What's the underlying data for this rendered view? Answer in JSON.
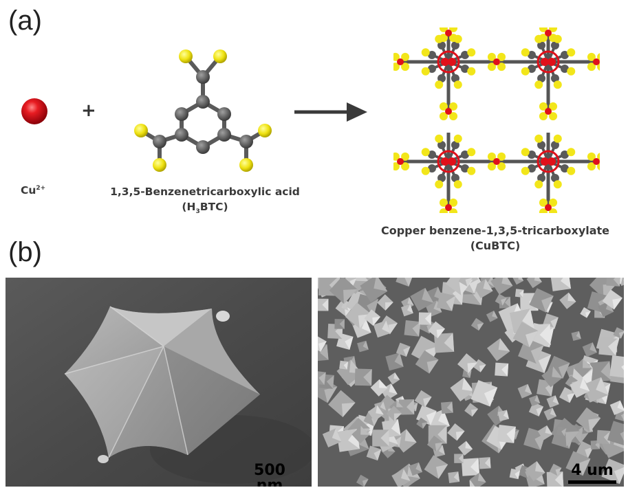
{
  "panel_a": {
    "label": "(a)",
    "ion": {
      "symbol": "Cu",
      "charge": "2+"
    },
    "plus": "+",
    "linker": {
      "name": "1,3,5-Benzenetricarboxylic acid",
      "abbr_pre": "(H",
      "abbr_sub": "3",
      "abbr_post": "BTC)"
    },
    "product": {
      "name": "Copper benzene-1,3,5-tricarboxylate",
      "abbr": "(CuBTC)"
    },
    "colors": {
      "copper": "#e0101a",
      "carbon": "#5a5a5a",
      "oxygen": "#f2e61a",
      "bond": "#555555"
    }
  },
  "panel_b": {
    "label": "(b)",
    "left_scale": "500 nm",
    "right_scale": "4 um"
  }
}
